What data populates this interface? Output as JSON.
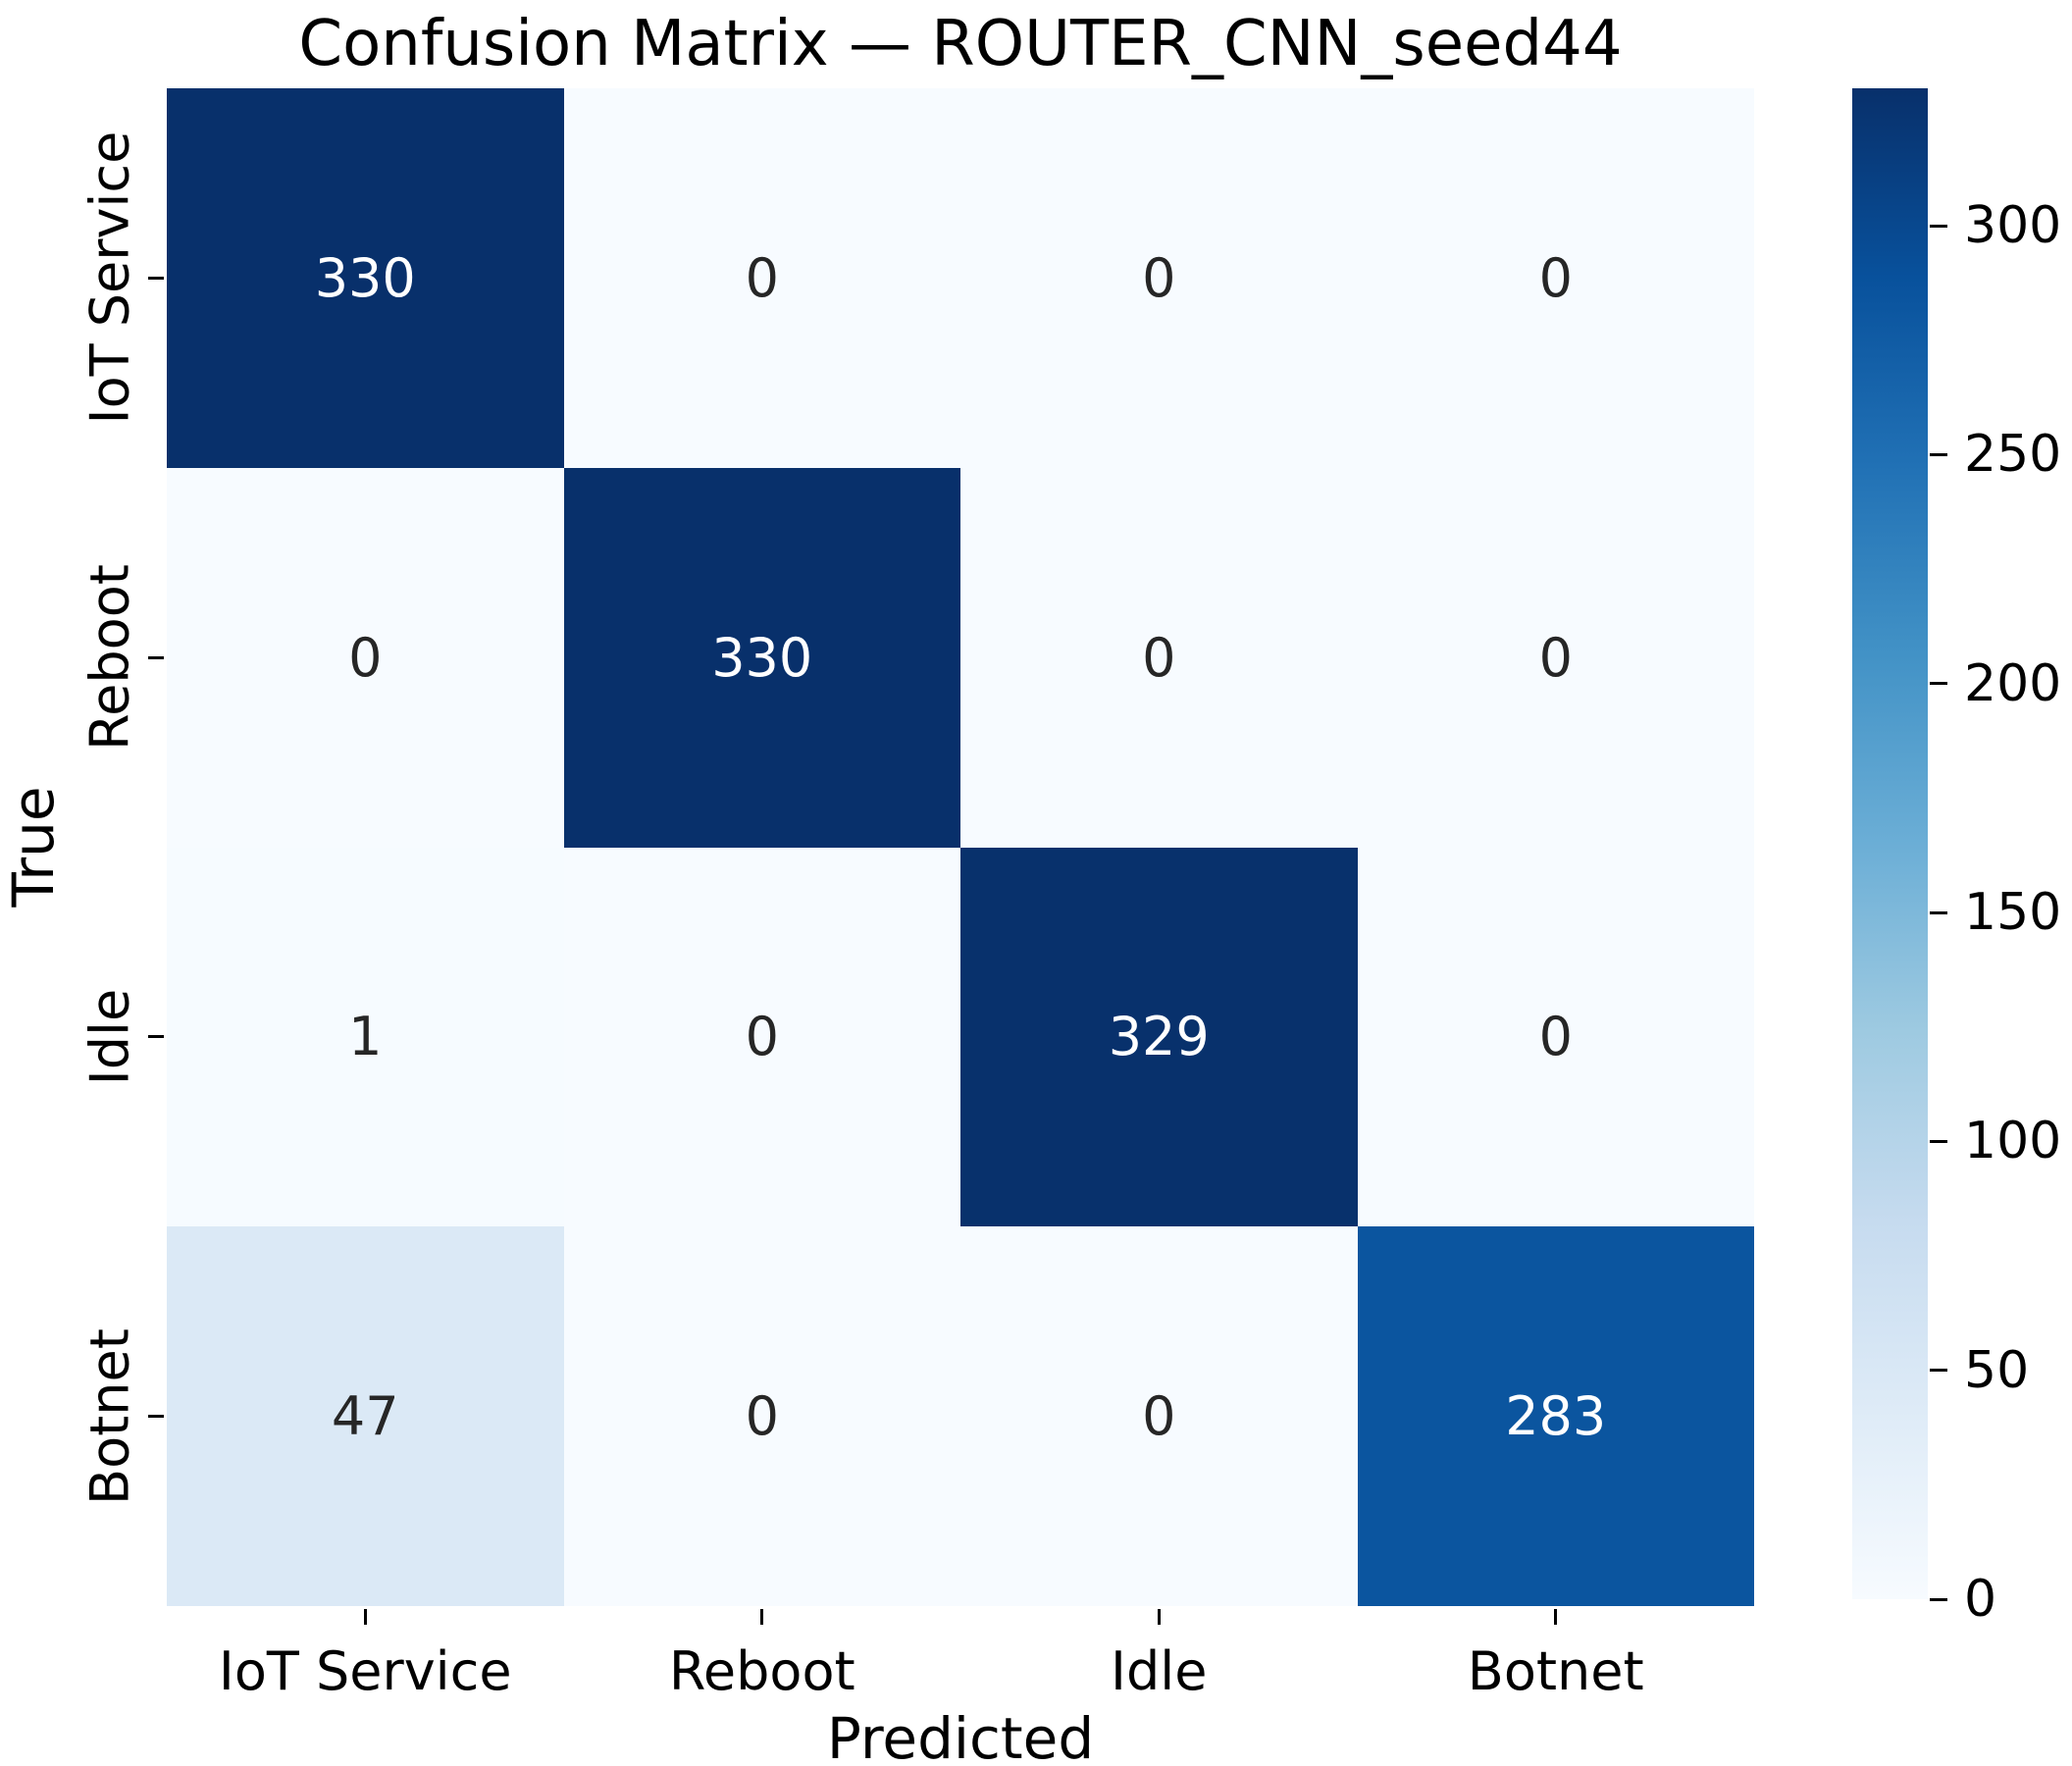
{
  "chart_data": {
    "type": "heatmap",
    "title": "Confusion Matrix — ROUTER_CNN_seed44",
    "xlabel": "Predicted",
    "ylabel": "True",
    "x_categories": [
      "IoT Service",
      "Reboot",
      "Idle",
      "Botnet"
    ],
    "y_categories": [
      "IoT Service",
      "Reboot",
      "Idle",
      "Botnet"
    ],
    "matrix": [
      [
        330,
        0,
        0,
        0
      ],
      [
        0,
        330,
        0,
        0
      ],
      [
        1,
        0,
        329,
        0
      ],
      [
        47,
        0,
        0,
        283
      ]
    ],
    "vmin": 0,
    "vmax": 330,
    "grid": false,
    "legend_position": "right-colorbar",
    "colorbar_ticks": [
      0,
      50,
      100,
      150,
      200,
      250,
      300
    ],
    "colormap": {
      "name": "Blues",
      "stops": [
        {
          "t": 0.0,
          "color": "#f7fbff"
        },
        {
          "t": 0.125,
          "color": "#deebf7"
        },
        {
          "t": 0.25,
          "color": "#c6dbef"
        },
        {
          "t": 0.375,
          "color": "#9ecae1"
        },
        {
          "t": 0.5,
          "color": "#6baed6"
        },
        {
          "t": 0.625,
          "color": "#4292c6"
        },
        {
          "t": 0.75,
          "color": "#2171b5"
        },
        {
          "t": 0.875,
          "color": "#08519c"
        },
        {
          "t": 1.0,
          "color": "#08306b"
        }
      ]
    },
    "annotation_colors": {
      "on_light": "#262626",
      "on_dark": "#ffffff"
    }
  }
}
